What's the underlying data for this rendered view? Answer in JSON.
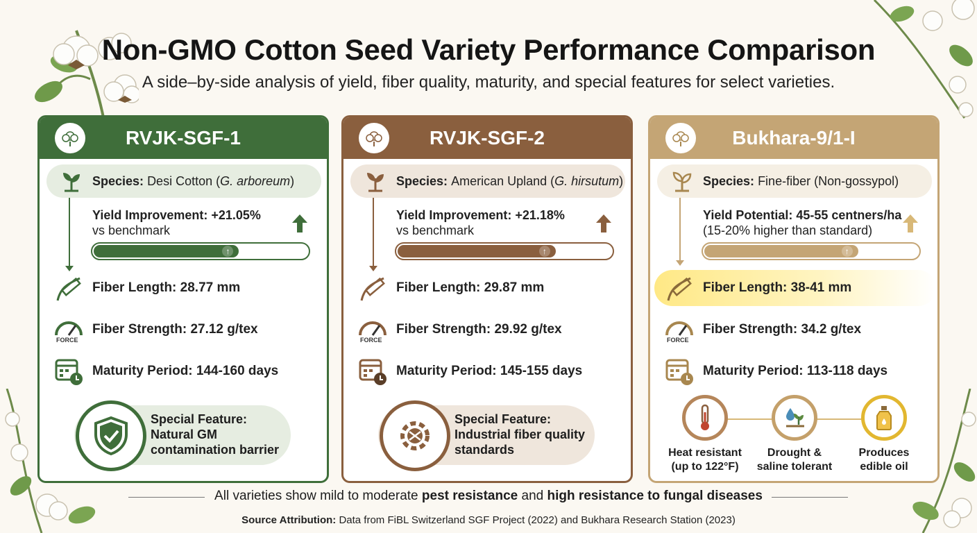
{
  "title": "Non-GMO Cotton Seed Variety Performance Comparison",
  "subtitle": "A side–by-side analysis of yield, fiber quality, maturity, and special features for select varieties.",
  "colors": {
    "green": "#3f6e3a",
    "brown": "#8a5f3e",
    "tan": "#c4a575"
  },
  "cards": [
    {
      "name": "RVJK-SGF-1",
      "species_label": "Species:",
      "species_text": "Desi Cotton (",
      "species_italic": "G. arboreum",
      "species_close": ")",
      "yield_label": "Yield Improvement: +21.05%",
      "yield_sub": "vs benchmark",
      "yield_fill": 0.68,
      "fiber_length": "Fiber Length: 28.77 mm",
      "force_label": "FORCE",
      "fiber_strength": "Fiber Strength: 27.12 g/tex",
      "maturity": "Maturity Period: 144-160 days",
      "feature_title": "Special Feature:",
      "feature_line1": "Natural GM",
      "feature_line2": "contamination barrier",
      "feature_icon": "shield-check-icon"
    },
    {
      "name": "RVJK-SGF-2",
      "species_label": "Species:",
      "species_text": "American Upland (",
      "species_italic": "G. hirsutum",
      "species_close": ")",
      "yield_label": "Yield Improvement: +21.18%",
      "yield_sub": "vs benchmark",
      "yield_fill": 0.74,
      "fiber_length": "Fiber Length: 29.87 mm",
      "force_label": "FORCE",
      "fiber_strength": "Fiber Strength: 29.92 g/tex",
      "maturity": "Maturity Period: 145-155 days",
      "feature_title": "Special Feature:",
      "feature_line1": "Industrial fiber quality",
      "feature_line2": "standards",
      "feature_icon": "gear-fiber-icon"
    },
    {
      "name": "Bukhara-9/1-I",
      "species_label": "Species:",
      "species_text": "Fine-fiber (Non-gossypol)",
      "yield_label": "Yield Potential: 45-55 centners/ha",
      "yield_sub": "(15-20% higher than standard)",
      "yield_fill": 0.72,
      "fiber_length": "Fiber Length: 38-41 mm",
      "force_label": "FORCE",
      "fiber_strength": "Fiber Strength: 34.2 g/tex",
      "maturity": "Maturity Period: 113-118 days",
      "features": [
        {
          "line1": "Heat resistant",
          "line2": "(up to 122°F)",
          "icon": "thermometer-icon"
        },
        {
          "line1": "Drought &",
          "line2": "saline tolerant",
          "icon": "plant-water-icon"
        },
        {
          "line1": "Produces",
          "line2": "edible oil",
          "icon": "oil-bottle-icon"
        }
      ]
    }
  ],
  "footer": {
    "pre": "All varieties show mild to moderate ",
    "b1": "pest resistance",
    "mid": " and ",
    "b2": "high resistance to fungal diseases"
  },
  "source": {
    "label": "Source Attribution:",
    "text": " Data from FiBL Switzerland SGF Project (2022) and Bukhara Research Station (2023)"
  }
}
